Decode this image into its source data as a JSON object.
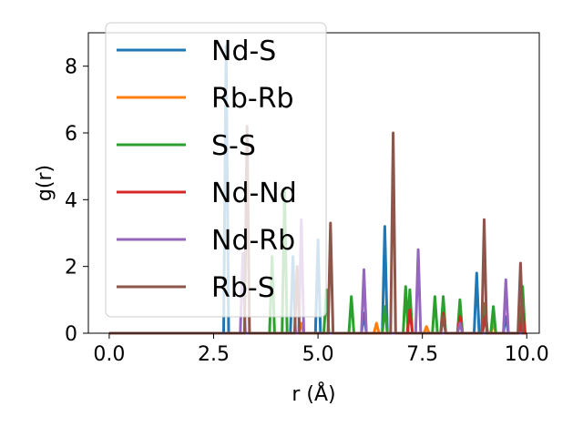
{
  "chart_data": {
    "type": "line",
    "xlabel": "r (Å)",
    "ylabel": "g(r)",
    "xlim": [
      -0.5,
      10.3
    ],
    "ylim": [
      0,
      9.0
    ],
    "xticks": [
      "0.0",
      "2.5",
      "5.0",
      "7.5",
      "10.0"
    ],
    "xtick_values": [
      0,
      2.5,
      5,
      7.5,
      10
    ],
    "yticks": [
      "0",
      "2",
      "4",
      "6",
      "8"
    ],
    "ytick_values": [
      0,
      2,
      4,
      6,
      8
    ],
    "legend_position": "upper-left",
    "series": [
      {
        "name": "Nd-S",
        "color": "#1f77b4",
        "peaks": [
          [
            2.8,
            8.6
          ],
          [
            4.4,
            2.3
          ],
          [
            5.0,
            2.8
          ],
          [
            6.1,
            0.6
          ],
          [
            6.6,
            3.2
          ],
          [
            8.8,
            1.8
          ],
          [
            9.5,
            0.5
          ]
        ]
      },
      {
        "name": "Rb-Rb",
        "color": "#ff7f0e",
        "peaks": [
          [
            4.6,
            0.3
          ],
          [
            6.4,
            0.3
          ],
          [
            7.6,
            0.2
          ],
          [
            9.2,
            0.3
          ]
        ]
      },
      {
        "name": "S-S",
        "color": "#2ca02c",
        "peaks": [
          [
            3.9,
            2.3
          ],
          [
            4.2,
            4.3
          ],
          [
            5.2,
            1.3
          ],
          [
            5.8,
            1.1
          ],
          [
            6.6,
            0.8
          ],
          [
            7.1,
            1.4
          ],
          [
            7.2,
            1.3
          ],
          [
            7.8,
            1.1
          ],
          [
            8.0,
            1.1
          ],
          [
            8.4,
            1.0
          ],
          [
            9.0,
            0.9
          ],
          [
            9.2,
            0.8
          ],
          [
            9.9,
            1.4
          ]
        ]
      },
      {
        "name": "Nd-Nd",
        "color": "#d62728",
        "peaks": [
          [
            7.2,
            0.7
          ],
          [
            8.0,
            0.6
          ],
          [
            8.4,
            0.5
          ],
          [
            9.0,
            0.5
          ],
          [
            9.9,
            0.7
          ]
        ]
      },
      {
        "name": "Nd-Rb",
        "color": "#9467bd",
        "peaks": [
          [
            3.2,
            2.4
          ],
          [
            4.6,
            3.4
          ],
          [
            6.1,
            1.9
          ],
          [
            7.4,
            2.5
          ],
          [
            8.4,
            0.3
          ],
          [
            9.5,
            1.6
          ]
        ]
      },
      {
        "name": "Rb-S",
        "color": "#8c564b",
        "peaks": [
          [
            3.3,
            6.2
          ],
          [
            4.5,
            2.0
          ],
          [
            5.3,
            3.3
          ],
          [
            6.8,
            6.0
          ],
          [
            8.0,
            0.5
          ],
          [
            8.98,
            3.4
          ],
          [
            9.85,
            2.1
          ]
        ]
      }
    ]
  }
}
